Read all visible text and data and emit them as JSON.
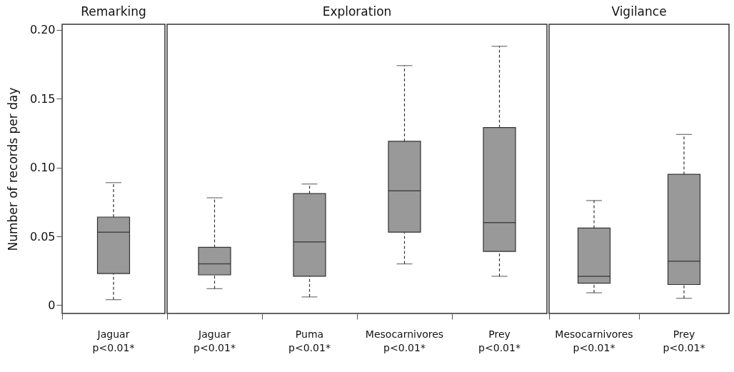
{
  "chart_data": [
    {
      "type": "box",
      "title": "Remarking",
      "ylabel": "Number of records per day",
      "categories": [
        "Jaguar\np<0.01*"
      ],
      "ylim": [
        -0.006,
        0.204
      ],
      "yticks": [
        0,
        0.05,
        {
          "value": 0.1,
          "label": "0.10"
        },
        0.15,
        {
          "value": 0.2,
          "label": "0.20"
        }
      ],
      "series": [
        {
          "color": "#999999",
          "boxes": [
            {
              "low": 0.004,
              "q1": 0.023,
              "median": 0.053,
              "q3": 0.064,
              "high": 0.089
            }
          ]
        }
      ]
    },
    {
      "type": "box",
      "title": "Exploration",
      "categories": [
        "Jaguar\np<0.01*",
        "Puma\np<0.01*",
        "Mesocarnivores\np<0.01*",
        "Prey\np<0.01*"
      ],
      "ylim": [
        -0.006,
        0.204
      ],
      "tick_labels": "x",
      "series": [
        {
          "color": "#999999",
          "boxes": [
            {
              "low": 0.012,
              "q1": 0.022,
              "median": 0.03,
              "q3": 0.042,
              "high": 0.078
            },
            {
              "low": 0.006,
              "q1": 0.021,
              "median": 0.046,
              "q3": 0.081,
              "high": 0.088
            },
            {
              "low": 0.03,
              "q1": 0.053,
              "median": 0.083,
              "q3": 0.119,
              "high": 0.174
            },
            {
              "low": 0.021,
              "q1": 0.039,
              "median": 0.06,
              "q3": 0.129,
              "high": 0.188
            }
          ]
        }
      ]
    },
    {
      "type": "box",
      "title": "Vigilance",
      "categories": [
        "Mesocarnivores\np<0.01*",
        "Prey\np<0.01*"
      ],
      "ylim": [
        -0.006,
        0.204
      ],
      "tick_labels": "x",
      "series": [
        {
          "color": "#999999",
          "boxes": [
            {
              "low": 0.009,
              "q1": 0.016,
              "median": 0.021,
              "q3": 0.056,
              "high": 0.076
            },
            {
              "low": 0.005,
              "q1": 0.015,
              "median": 0.032,
              "q3": 0.095,
              "high": 0.124
            }
          ]
        }
      ]
    }
  ]
}
